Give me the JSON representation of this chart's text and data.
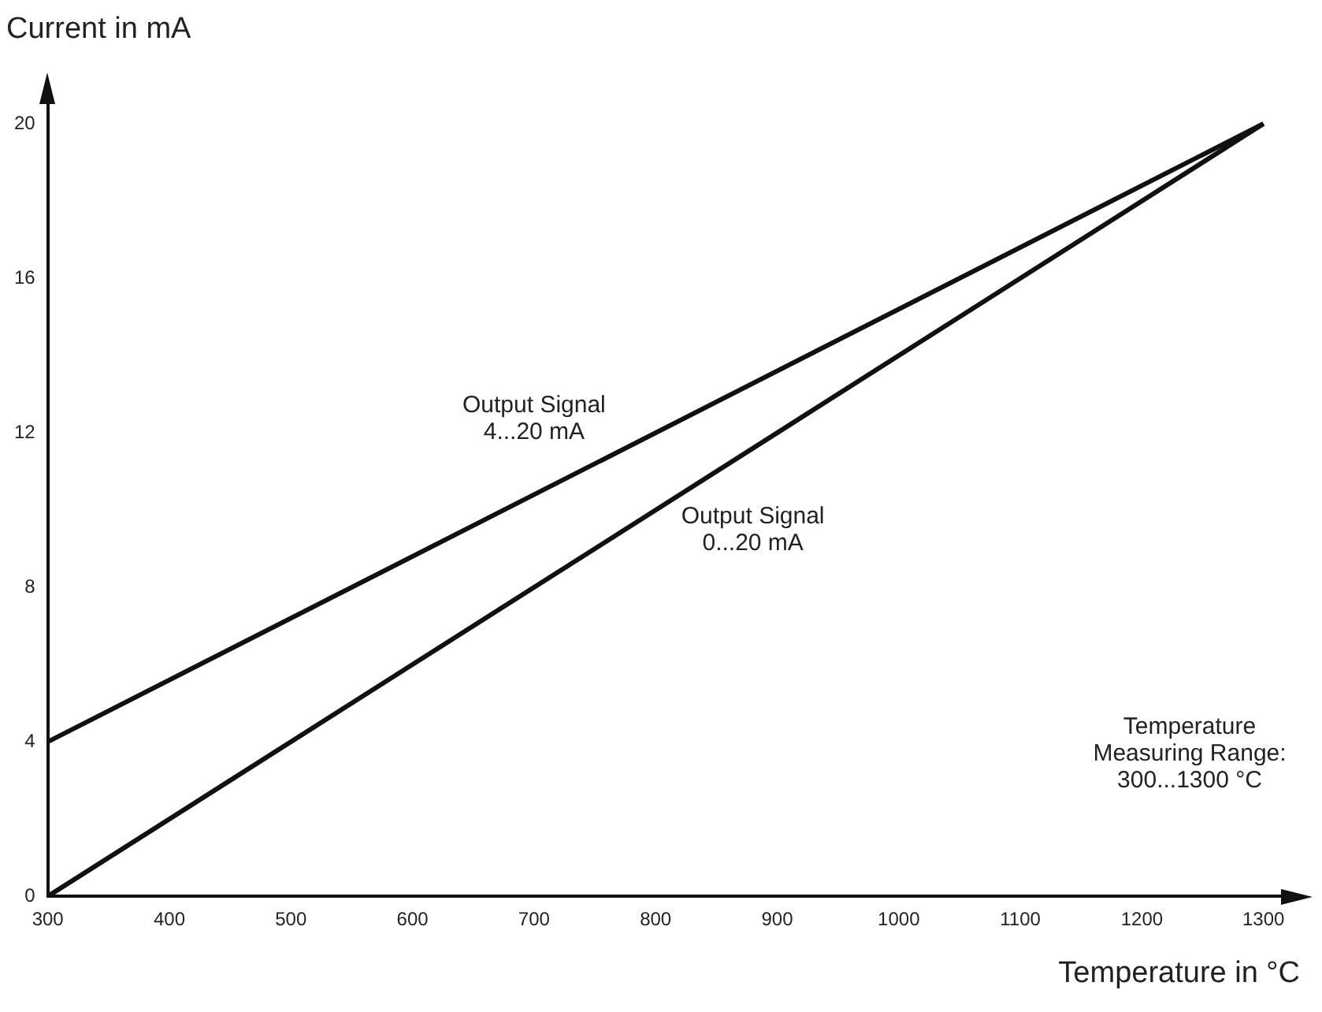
{
  "chart_data": {
    "type": "line",
    "xlabel": "Temperature in °C",
    "ylabel": "Current in mA",
    "x": [
      300,
      1300
    ],
    "series": [
      {
        "name": "Output Signal\n4...20 mA",
        "color": "#111111",
        "values": [
          4,
          20
        ]
      },
      {
        "name": "Output Signal\n0...20 mA",
        "color": "#111111",
        "values": [
          0,
          20
        ]
      }
    ],
    "xlim": [
      300,
      1330
    ],
    "xticks": [
      300,
      400,
      500,
      600,
      700,
      800,
      900,
      1000,
      1100,
      1200,
      1300
    ],
    "ylim": [
      0,
      21
    ],
    "yticks": [
      0,
      4,
      8,
      12,
      16,
      20
    ],
    "grid": false,
    "legend": false,
    "marker": "none",
    "line_style": "solid",
    "annotations": [
      "Temperature\nMeasuring Range:\n300...1300 °C"
    ]
  }
}
